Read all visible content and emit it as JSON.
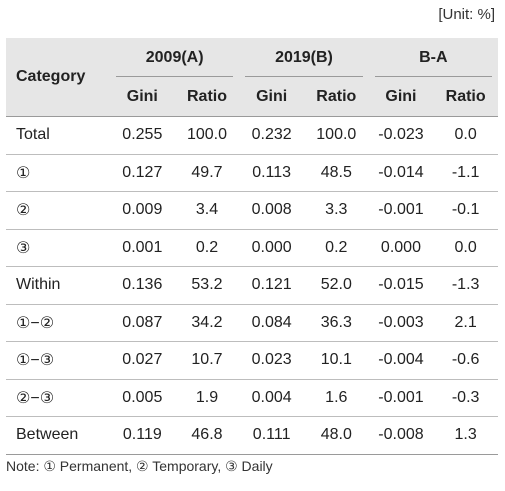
{
  "unit_label": "[Unit: %]",
  "header": {
    "category": "Category",
    "groups": [
      "2009(A)",
      "2019(B)",
      "B-A"
    ],
    "subcolumns": [
      "Gini",
      "Ratio",
      "Gini",
      "Ratio",
      "Gini",
      "Ratio"
    ]
  },
  "rows": [
    {
      "label": "Total",
      "cells": [
        "0.255",
        "100.0",
        "0.232",
        "100.0",
        "-0.023",
        "0.0"
      ]
    },
    {
      "label": "①",
      "cells": [
        "0.127",
        "49.7",
        "0.113",
        "48.5",
        "-0.014",
        "-1.1"
      ]
    },
    {
      "label": "②",
      "cells": [
        "0.009",
        "3.4",
        "0.008",
        "3.3",
        "-0.001",
        "-0.1"
      ]
    },
    {
      "label": "③",
      "cells": [
        "0.001",
        "0.2",
        "0.000",
        "0.2",
        "0.000",
        "0.0"
      ]
    },
    {
      "label": "Within",
      "cells": [
        "0.136",
        "53.2",
        "0.121",
        "52.0",
        "-0.015",
        "-1.3"
      ]
    },
    {
      "label": "①−②",
      "cells": [
        "0.087",
        "34.2",
        "0.084",
        "36.3",
        "-0.003",
        "2.1"
      ]
    },
    {
      "label": "①−③",
      "cells": [
        "0.027",
        "10.7",
        "0.023",
        "10.1",
        "-0.004",
        "-0.6"
      ]
    },
    {
      "label": "②−③",
      "cells": [
        "0.005",
        "1.9",
        "0.004",
        "1.6",
        "-0.001",
        "-0.3"
      ]
    },
    {
      "label": "Between",
      "cells": [
        "0.119",
        "46.8",
        "0.111",
        "48.0",
        "-0.008",
        "1.3"
      ]
    }
  ],
  "note": "Note: ① Permanent, ② Temporary, ③ Daily"
}
